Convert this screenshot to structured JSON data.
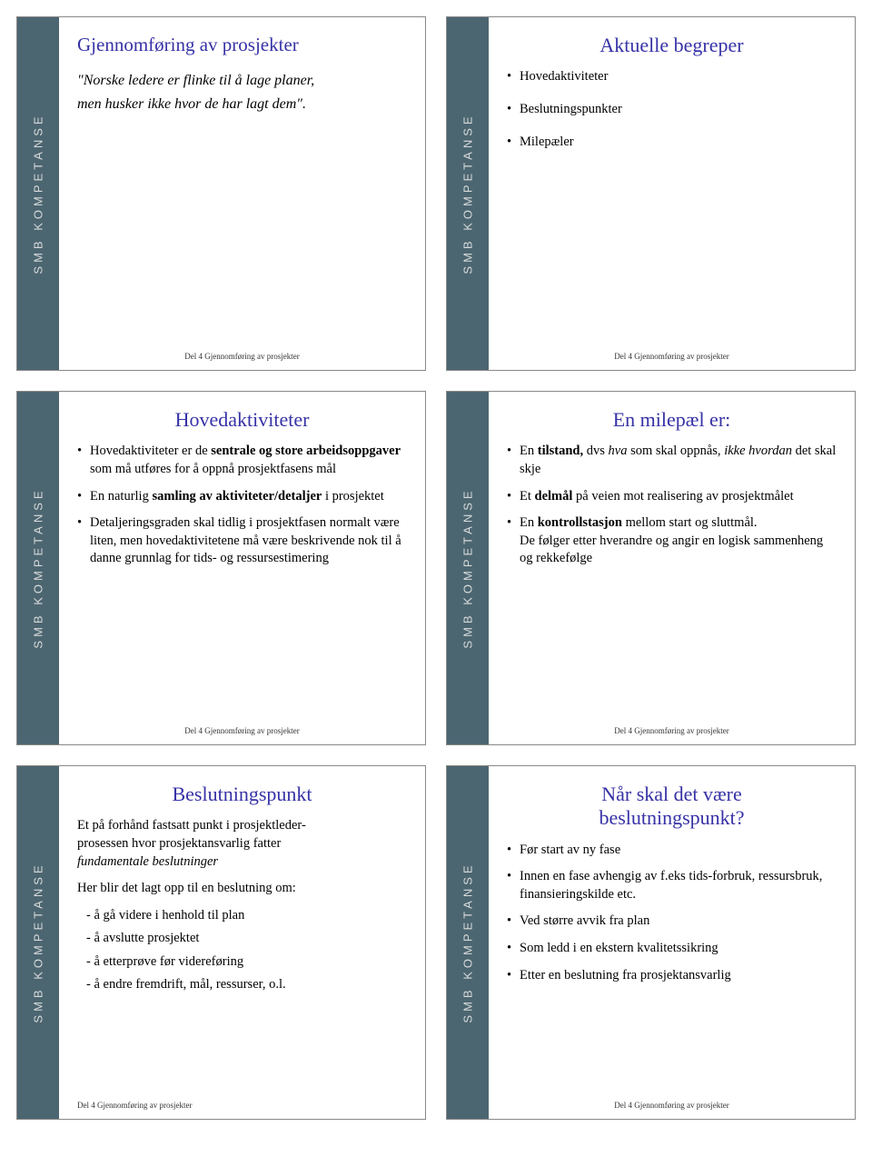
{
  "footer": "Del 4 Gjennomføring av prosjekter",
  "colors": {
    "title": "#3632a6",
    "sidebar": "#4c6671",
    "text": "#000000",
    "border": "#888888"
  },
  "typography": {
    "title_size_pt": 16,
    "body_size_pt": 11,
    "footer_size_pt": 7,
    "family": "Times New Roman"
  },
  "slide1": {
    "title": "Gjennomføring av prosjekter",
    "quote_line1": "\"Norske ledere er flinke til å lage planer,",
    "quote_line2": "men husker ikke hvor de har lagt dem\"."
  },
  "slide2": {
    "title": "Aktuelle begreper",
    "items": [
      "Hovedaktiviteter",
      "Beslutningspunkter",
      "Milepæler"
    ]
  },
  "slide3": {
    "title": "Hovedaktiviteter",
    "b1_pre": "Hovedaktiviteter er de ",
    "b1_strong1": "sentrale og store arbeidsoppgaver",
    "b1_post": " som må utføres for å oppnå prosjektfasens mål",
    "b2_pre": "En naturlig ",
    "b2_strong": "samling av aktiviteter/detaljer",
    "b2_post": " i prosjektet",
    "b3": "Detaljeringsgraden skal tidlig i prosjektfasen normalt være liten, men hovedaktivitetene må være beskrivende nok til å danne grunnlag for tids- og ressursestimering"
  },
  "slide4": {
    "title": "En milepæl er:",
    "b1_pre": "En ",
    "b1_strong": "tilstand,",
    "b1_mid": " dvs ",
    "b1_em1": "hva",
    "b1_mid2": " som skal oppnås, ",
    "b1_em2": "ikke hvordan",
    "b1_post": " det skal skje",
    "b2_pre": "Et ",
    "b2_strong": "delmål",
    "b2_post": " på veien mot realisering av prosjektmålet",
    "b3_pre": "En ",
    "b3_strong": "kontrollstasjon",
    "b3_post": " mellom start og sluttmål.",
    "b3_line2": "De følger etter hverandre og angir en logisk sammenheng og rekkefølge"
  },
  "slide5": {
    "title": "Beslutningspunkt",
    "intro_l1": "Et på forhånd fastsatt punkt i prosjektleder-",
    "intro_l2": "prosessen hvor prosjektansvarlig fatter",
    "intro_em": "fundamentale beslutninger",
    "sub_intro": "Her blir det lagt opp til en beslutning om:",
    "subs": [
      "- å gå videre i henhold  til plan",
      "- å avslutte prosjektet",
      "- å etterprøve før videreføring",
      "- å endre fremdrift, mål, ressurser, o.l."
    ]
  },
  "slide6": {
    "title_l1": "Når skal det være",
    "title_l2": "beslutningspunkt?",
    "items": [
      "Før start av ny fase",
      "Innen en fase avhengig av f.eks tids-forbruk, ressursbruk, finansieringskilde etc.",
      "Ved større avvik fra plan",
      "Som ledd i en ekstern kvalitetssikring",
      "Etter en beslutning fra prosjektansvarlig"
    ]
  }
}
